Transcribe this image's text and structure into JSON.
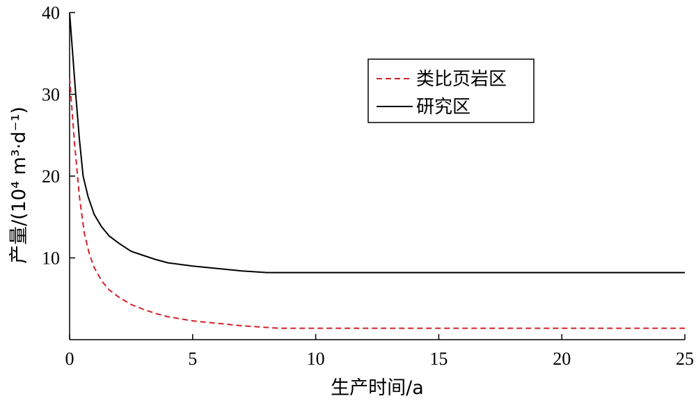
{
  "chart_data": {
    "type": "line",
    "title": "",
    "xlabel": "生产时间/a",
    "ylabel": "产量/(10⁴ m³·d⁻¹)",
    "xlim": [
      0,
      25
    ],
    "ylim": [
      0,
      40
    ],
    "x_ticks": [
      "0",
      "5",
      "10",
      "15",
      "20",
      "25"
    ],
    "y_ticks": [
      "10",
      "20",
      "30",
      "40"
    ],
    "grid": false,
    "legend_position": "top-right",
    "series": [
      {
        "name": "类比页岩区",
        "color": "#d0202a",
        "dash": "dashed",
        "points": [
          [
            0.0,
            32.0
          ],
          [
            0.2,
            24.0
          ],
          [
            0.4,
            17.5
          ],
          [
            0.6,
            13.0
          ],
          [
            0.8,
            10.5
          ],
          [
            1.0,
            8.8
          ],
          [
            1.3,
            7.2
          ],
          [
            1.6,
            6.1
          ],
          [
            2.0,
            5.2
          ],
          [
            2.5,
            4.3
          ],
          [
            3.0,
            3.7
          ],
          [
            3.5,
            3.2
          ],
          [
            4.0,
            2.8
          ],
          [
            5.0,
            2.3
          ],
          [
            6.0,
            2.0
          ],
          [
            7.0,
            1.7
          ],
          [
            8.0,
            1.5
          ],
          [
            8.5,
            1.4
          ],
          [
            10,
            1.4
          ],
          [
            15,
            1.4
          ],
          [
            20,
            1.4
          ],
          [
            25,
            1.4
          ]
        ]
      },
      {
        "name": "研究区",
        "color": "#000000",
        "dash": "solid",
        "points": [
          [
            0.0,
            40.0
          ],
          [
            0.1,
            36.0
          ],
          [
            0.25,
            30.0
          ],
          [
            0.4,
            24.5
          ],
          [
            0.55,
            20.0
          ],
          [
            0.75,
            17.5
          ],
          [
            1.0,
            15.3
          ],
          [
            1.3,
            13.8
          ],
          [
            1.6,
            12.7
          ],
          [
            2.0,
            11.8
          ],
          [
            2.5,
            10.8
          ],
          [
            3.0,
            10.3
          ],
          [
            3.5,
            9.8
          ],
          [
            4.0,
            9.4
          ],
          [
            5.0,
            9.0
          ],
          [
            6.0,
            8.7
          ],
          [
            7.0,
            8.4
          ],
          [
            8.0,
            8.2
          ],
          [
            10,
            8.2
          ],
          [
            15,
            8.2
          ],
          [
            20,
            8.2
          ],
          [
            25,
            8.2
          ]
        ]
      }
    ]
  }
}
